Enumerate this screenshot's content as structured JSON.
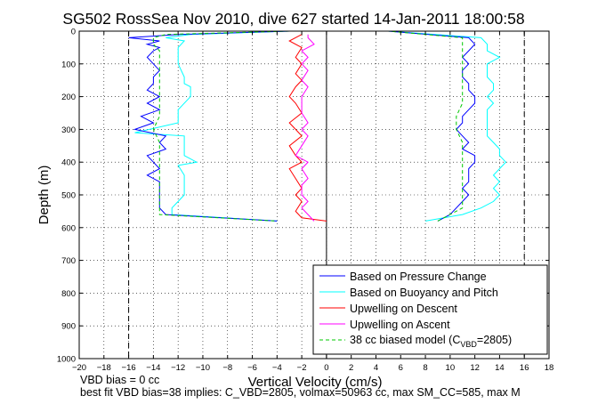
{
  "chart_data": {
    "type": "line",
    "title": "SG502 RossSea Nov 2010, dive 627 started 14-Jan-2011 18:00:58",
    "xlabel": "Vertical Velocity (cm/s)",
    "ylabel": "Depth (m)",
    "xlim": [
      -20,
      18
    ],
    "ylim": [
      0,
      1000
    ],
    "y_reversed": true,
    "grid": "dotted",
    "xticks": [
      "−20",
      "−18",
      "−16",
      "−14",
      "−12",
      "−10",
      "−8",
      "−6",
      "−4",
      "−2",
      "0",
      "2",
      "4",
      "6",
      "8",
      "10",
      "12",
      "14",
      "16",
      "18"
    ],
    "yticks": [
      "0",
      "100",
      "200",
      "300",
      "400",
      "500",
      "600",
      "700",
      "800",
      "900",
      "1000"
    ],
    "reference_lines": {
      "vertical_solid": [
        0
      ],
      "vertical_dashed": [
        -16,
        16
      ]
    },
    "legend": {
      "placement": "bottom-right",
      "entries": [
        {
          "label": "Based on Pressure Change",
          "color": "#0000ff",
          "style": "solid"
        },
        {
          "label": "Based on Buoyancy and Pitch",
          "color": "#00ffff",
          "style": "solid"
        },
        {
          "label": "Upwelling on Descent",
          "color": "#ff0000",
          "style": "solid"
        },
        {
          "label": "Upwelling on Ascent",
          "color": "#ff00ff",
          "style": "solid"
        },
        {
          "label_prefix": "38 cc biased model (C",
          "label_sub": "VBD",
          "label_suffix": "=2805)",
          "color": "#00c800",
          "style": "dashed"
        }
      ]
    },
    "series": [
      {
        "name": "Based on Pressure Change",
        "color": "#0000ff",
        "descent": {
          "depth": [
            0,
            10,
            20,
            30,
            40,
            50,
            60,
            80,
            100,
            120,
            140,
            160,
            180,
            200,
            220,
            240,
            260,
            280,
            300,
            320,
            340,
            360,
            380,
            400,
            420,
            440,
            460,
            480,
            500,
            520,
            540,
            560,
            580
          ],
          "x": [
            -3,
            -12,
            -16,
            -13.5,
            -14.5,
            -13.5,
            -14,
            -14.5,
            -14,
            -13.5,
            -14,
            -14,
            -14.5,
            -13.5,
            -14.5,
            -13.5,
            -15,
            -14,
            -15.5,
            -13,
            -13.5,
            -13,
            -14.5,
            -14,
            -13.5,
            -14.5,
            -13.5,
            -13.5,
            -13.5,
            -13.5,
            -13.5,
            -13,
            -4
          ]
        },
        "ascent": {
          "depth": [
            580,
            560,
            540,
            520,
            500,
            480,
            460,
            440,
            420,
            400,
            380,
            360,
            340,
            320,
            300,
            280,
            260,
            240,
            220,
            200,
            180,
            160,
            140,
            120,
            100,
            80,
            60,
            40,
            20,
            0
          ],
          "x": [
            9,
            10,
            10.5,
            11,
            11.5,
            11,
            11.5,
            11.5,
            11.5,
            12,
            12,
            11,
            11.5,
            11,
            10.5,
            11,
            11,
            11.5,
            12,
            12,
            11.5,
            11.5,
            11,
            11,
            11.5,
            11,
            11.5,
            12,
            11.5,
            5
          ]
        }
      },
      {
        "name": "Based on Buoyancy and Pitch",
        "color": "#00ffff",
        "descent": {
          "depth": [
            0,
            10,
            20,
            30,
            50,
            80,
            100,
            140,
            160,
            170,
            200,
            240,
            280,
            310,
            320,
            350,
            380,
            400,
            410,
            440,
            460,
            480,
            500,
            520,
            540,
            560,
            580
          ],
          "x": [
            -3,
            -11,
            -13,
            -11.5,
            -12,
            -12,
            -12,
            -11.5,
            -11.5,
            -11,
            -11,
            -12,
            -12,
            -15.5,
            -11.5,
            -11.5,
            -11.5,
            -10.5,
            -12,
            -11.5,
            -11.5,
            -11.5,
            -11.5,
            -12,
            -12.5,
            -12.5,
            -4
          ]
        },
        "ascent": {
          "depth": [
            580,
            560,
            540,
            520,
            500,
            480,
            460,
            440,
            420,
            400,
            380,
            360,
            340,
            320,
            300,
            280,
            260,
            240,
            220,
            200,
            180,
            160,
            140,
            120,
            100,
            80,
            60,
            40,
            20,
            0
          ],
          "x": [
            8,
            11,
            12.5,
            13.5,
            14,
            13.5,
            14,
            13.5,
            14,
            14.5,
            14,
            14,
            13.5,
            13,
            13,
            13,
            13,
            13,
            13.5,
            13,
            13.5,
            13.5,
            13,
            13,
            13,
            14,
            13,
            13,
            12.5,
            5
          ]
        }
      },
      {
        "name": "Upwelling on Descent",
        "color": "#ff0000",
        "depth": [
          10,
          30,
          50,
          80,
          100,
          130,
          150,
          170,
          200,
          220,
          250,
          280,
          300,
          320,
          350,
          380,
          400,
          420,
          450,
          480,
          500,
          520,
          550,
          570,
          580
        ],
        "x": [
          -2,
          -3,
          -2,
          -2.5,
          -2,
          -2.5,
          -2,
          -2.5,
          -3,
          -2.5,
          -2,
          -3,
          -2.5,
          -2,
          -3,
          -2.5,
          -2,
          -3,
          -2.5,
          -2,
          -2.5,
          -2,
          -2.5,
          -2,
          0
        ]
      },
      {
        "name": "Upwelling on Ascent",
        "color": "#ff00ff",
        "depth": [
          580,
          560,
          540,
          520,
          500,
          470,
          450,
          420,
          400,
          380,
          350,
          320,
          300,
          280,
          250,
          220,
          200,
          170,
          150,
          120,
          100,
          80,
          60,
          40,
          20,
          10
        ],
        "x": [
          -1,
          -1.5,
          -2,
          -1.5,
          -2,
          -2,
          -1.5,
          -2,
          -1.5,
          -2.5,
          -2,
          -1.5,
          -2,
          -1.5,
          -2,
          -2,
          -2,
          -1.5,
          -2,
          -1.5,
          -2,
          -1.5,
          -2,
          -1,
          -1.5,
          -1.5
        ]
      },
      {
        "name": "38 cc biased model (CVBD=2805)",
        "color": "#00c800",
        "descent": {
          "depth": [
            0,
            10,
            20,
            40,
            60,
            80,
            100,
            140,
            180,
            220,
            260,
            300,
            340,
            380,
            420,
            460,
            500,
            540,
            560,
            580
          ],
          "x": [
            -3,
            -13,
            -14,
            -14,
            -13.5,
            -13.5,
            -13.5,
            -13.5,
            -13.5,
            -13.5,
            -13.5,
            -14,
            -13.5,
            -13.5,
            -13.5,
            -13.5,
            -13.5,
            -13.5,
            -13.5,
            -4
          ]
        },
        "ascent": {
          "depth": [
            580,
            540,
            500,
            460,
            420,
            380,
            340,
            300,
            260,
            220,
            180,
            140,
            100,
            60,
            20,
            0
          ],
          "x": [
            9,
            11,
            11,
            11,
            11,
            11,
            11,
            10.5,
            10.5,
            11,
            11,
            11,
            11,
            11,
            11,
            5
          ]
        }
      }
    ],
    "footer_lines": [
      "VBD bias = 0 cc",
      "best fit VBD bias=38 implies: C_VBD=2805, volmax=50963 cc, max SM_CC=585, max M"
    ]
  }
}
